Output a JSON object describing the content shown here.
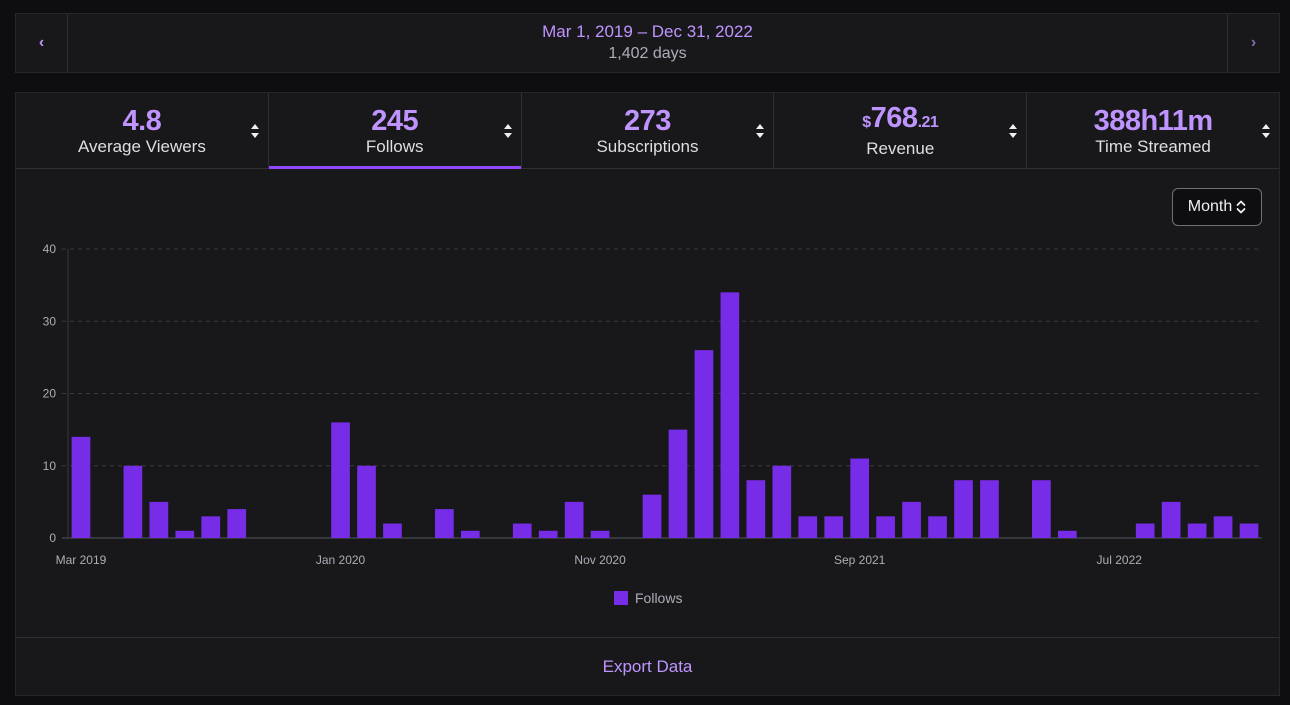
{
  "date_nav": {
    "prev_icon": "chevron-left-icon",
    "next_icon": "chevron-right-icon",
    "range": "Mar 1, 2019 – Dec 31, 2022",
    "days": "1,402 days"
  },
  "tabs": [
    {
      "key": "avg",
      "value": "4.8",
      "label": "Average Viewers",
      "active": false
    },
    {
      "key": "follows",
      "value": "245",
      "label": "Follows",
      "active": true
    },
    {
      "key": "subs",
      "value": "273",
      "label": "Subscriptions",
      "active": false
    },
    {
      "key": "revenue",
      "currency": "$",
      "whole": "768",
      "cents": ".21",
      "label": "Revenue",
      "active": false
    },
    {
      "key": "time",
      "value": "388h11m",
      "label": "Time Streamed",
      "active": false
    }
  ],
  "period_select": {
    "value": "Month"
  },
  "colors": {
    "accent": "#9147ff",
    "bar": "#772ce8",
    "accent_text": "#bf94ff"
  },
  "chart_data": {
    "type": "bar",
    "title": "",
    "xlabel": "",
    "ylabel": "",
    "ylim": [
      0,
      40
    ],
    "yticks": [
      0,
      10,
      20,
      30,
      40
    ],
    "categories": [
      "Mar 2019",
      "Apr 2019",
      "May 2019",
      "Jun 2019",
      "Jul 2019",
      "Aug 2019",
      "Sep 2019",
      "Oct 2019",
      "Nov 2019",
      "Dec 2019",
      "Jan 2020",
      "Feb 2020",
      "Mar 2020",
      "Apr 2020",
      "May 2020",
      "Jun 2020",
      "Jul 2020",
      "Aug 2020",
      "Sep 2020",
      "Oct 2020",
      "Nov 2020",
      "Dec 2020",
      "Jan 2021",
      "Feb 2021",
      "Mar 2021",
      "Apr 2021",
      "May 2021",
      "Jun 2021",
      "Jul 2021",
      "Aug 2021",
      "Sep 2021",
      "Oct 2021",
      "Nov 2021",
      "Dec 2021",
      "Jan 2022",
      "Feb 2022",
      "Mar 2022",
      "Apr 2022",
      "May 2022",
      "Jun 2022",
      "Jul 2022",
      "Aug 2022",
      "Sep 2022",
      "Oct 2022",
      "Nov 2022",
      "Dec 2022"
    ],
    "tick_labels": [
      {
        "index": 0,
        "label": "Mar 2019"
      },
      {
        "index": 10,
        "label": "Jan 2020"
      },
      {
        "index": 20,
        "label": "Nov 2020"
      },
      {
        "index": 30,
        "label": "Sep 2021"
      },
      {
        "index": 40,
        "label": "Jul 2022"
      }
    ],
    "series": [
      {
        "name": "Follows",
        "values": [
          14,
          0,
          10,
          5,
          1,
          3,
          4,
          0,
          0,
          0,
          16,
          10,
          2,
          0,
          4,
          1,
          0,
          2,
          1,
          5,
          1,
          0,
          6,
          15,
          26,
          34,
          8,
          10,
          3,
          3,
          11,
          3,
          5,
          3,
          8,
          8,
          0,
          8,
          1,
          0,
          0,
          2,
          5,
          2,
          3,
          2
        ]
      }
    ],
    "legend": "bottom-center",
    "grid": true
  },
  "legend_label": "Follows",
  "export_label": "Export Data"
}
